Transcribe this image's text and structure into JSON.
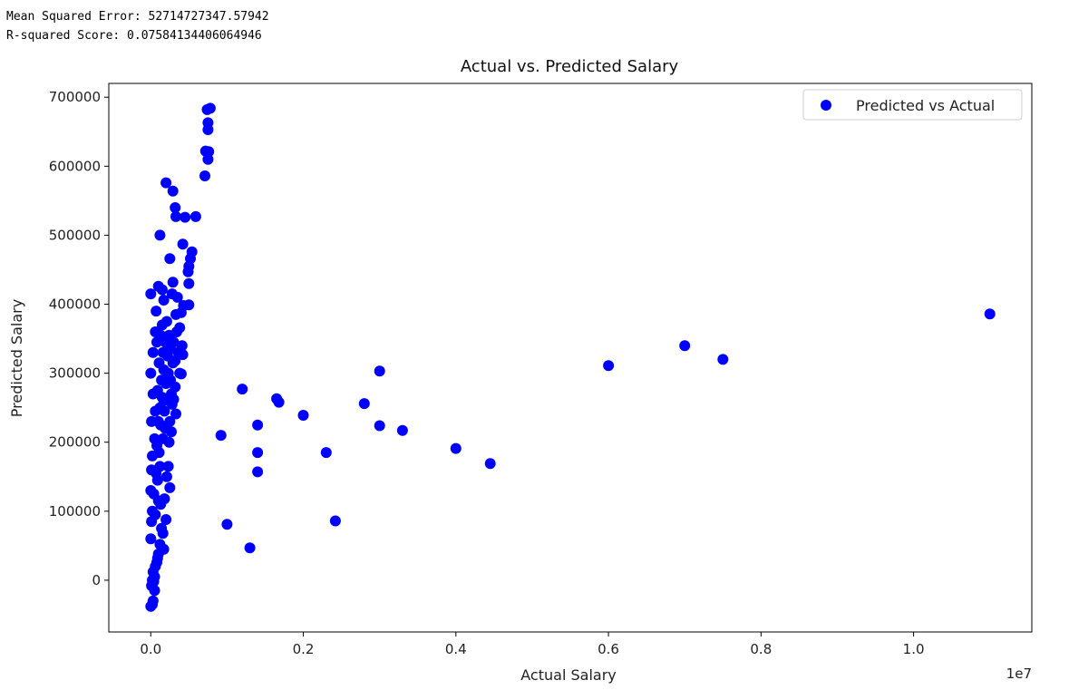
{
  "console": {
    "mse_line": "Mean Squared Error: 52714727347.57942",
    "r2_line": "R-squared Score: 0.07584134406064946"
  },
  "chart_data": {
    "type": "scatter",
    "title": "Actual vs. Predicted Salary",
    "xlabel": "Actual Salary",
    "ylabel": "Predicted Salary",
    "x_offset_label": "1e7",
    "xlim": [
      -550000,
      11550000
    ],
    "ylim": [
      -75000,
      720000
    ],
    "x_ticks": [
      0,
      2000000,
      4000000,
      6000000,
      8000000,
      10000000
    ],
    "x_tick_labels": [
      "0.0",
      "0.2",
      "0.4",
      "0.6",
      "0.8",
      "1.0"
    ],
    "y_ticks": [
      0,
      100000,
      200000,
      300000,
      400000,
      500000,
      600000,
      700000
    ],
    "y_tick_labels": [
      "0",
      "100000",
      "200000",
      "300000",
      "400000",
      "500000",
      "600000",
      "700000"
    ],
    "grid": false,
    "legend_position": "top-right",
    "series": [
      {
        "name": "Predicted vs Actual",
        "color": "#0000ff",
        "points": [
          [
            11000000,
            386000
          ],
          [
            7000000,
            340000
          ],
          [
            7500000,
            320000
          ],
          [
            6000000,
            311000
          ],
          [
            3000000,
            303000
          ],
          [
            2800000,
            256000
          ],
          [
            3000000,
            224000
          ],
          [
            3300000,
            217000
          ],
          [
            4000000,
            191000
          ],
          [
            4450000,
            169000
          ],
          [
            2300000,
            185000
          ],
          [
            2420000,
            86000
          ],
          [
            2000000,
            239000
          ],
          [
            1650000,
            263000
          ],
          [
            1680000,
            258000
          ],
          [
            1200000,
            277000
          ],
          [
            1400000,
            225000
          ],
          [
            1400000,
            185000
          ],
          [
            1400000,
            157000
          ],
          [
            920000,
            210000
          ],
          [
            1000000,
            81000
          ],
          [
            1300000,
            47000
          ],
          [
            780000,
            684000
          ],
          [
            740000,
            682000
          ],
          [
            750000,
            663000
          ],
          [
            750000,
            653000
          ],
          [
            720000,
            622000
          ],
          [
            760000,
            621000
          ],
          [
            750000,
            610000
          ],
          [
            710000,
            586000
          ],
          [
            200000,
            576000
          ],
          [
            290000,
            564000
          ],
          [
            320000,
            540000
          ],
          [
            330000,
            527000
          ],
          [
            450000,
            526000
          ],
          [
            590000,
            527000
          ],
          [
            120000,
            500000
          ],
          [
            420000,
            487000
          ],
          [
            540000,
            476000
          ],
          [
            520000,
            466000
          ],
          [
            250000,
            466000
          ],
          [
            500000,
            455000
          ],
          [
            490000,
            447000
          ],
          [
            500000,
            430000
          ],
          [
            290000,
            432000
          ],
          [
            100000,
            426000
          ],
          [
            150000,
            421000
          ],
          [
            0,
            415000
          ],
          [
            280000,
            415000
          ],
          [
            350000,
            410000
          ],
          [
            170000,
            406000
          ],
          [
            500000,
            399000
          ],
          [
            430000,
            398000
          ],
          [
            70000,
            390000
          ],
          [
            330000,
            385000
          ],
          [
            400000,
            388000
          ],
          [
            60000,
            360000
          ],
          [
            380000,
            366000
          ],
          [
            410000,
            340000
          ],
          [
            420000,
            327000
          ],
          [
            320000,
            318000
          ],
          [
            400000,
            299000
          ],
          [
            260000,
            290000
          ],
          [
            320000,
            280000
          ],
          [
            300000,
            262000
          ],
          [
            330000,
            241000
          ],
          [
            250000,
            230000
          ],
          [
            270000,
            215000
          ],
          [
            240000,
            200000
          ],
          [
            230000,
            165000
          ],
          [
            210000,
            150000
          ],
          [
            250000,
            134000
          ],
          [
            180000,
            118000
          ],
          [
            200000,
            88000
          ],
          [
            160000,
            68000
          ],
          [
            170000,
            45000
          ],
          [
            120000,
            52000
          ],
          [
            100000,
            38000
          ],
          [
            90000,
            32000
          ],
          [
            60000,
            20000
          ],
          [
            30000,
            12000
          ],
          [
            50000,
            5000
          ],
          [
            20000,
            0
          ],
          [
            10000,
            -8000
          ],
          [
            50000,
            -15000
          ],
          [
            30000,
            -30000
          ],
          [
            20000,
            -35000
          ],
          [
            0,
            -38000
          ],
          [
            40000,
            -2000
          ],
          [
            80000,
            26000
          ],
          [
            0,
            60000
          ],
          [
            10000,
            85000
          ],
          [
            0,
            130000
          ],
          [
            20000,
            180000
          ],
          [
            10000,
            230000
          ],
          [
            0,
            300000
          ],
          [
            30000,
            330000
          ],
          [
            80000,
            345000
          ],
          [
            60000,
            95000
          ],
          [
            90000,
            145000
          ],
          [
            110000,
            185000
          ],
          [
            130000,
            225000
          ],
          [
            150000,
            265000
          ],
          [
            170000,
            305000
          ],
          [
            190000,
            345000
          ],
          [
            210000,
            375000
          ],
          [
            140000,
            75000
          ],
          [
            100000,
            115000
          ],
          [
            120000,
            165000
          ],
          [
            160000,
            205000
          ],
          [
            180000,
            245000
          ],
          [
            200000,
            285000
          ],
          [
            220000,
            325000
          ],
          [
            240000,
            355000
          ],
          [
            70000,
            155000
          ],
          [
            90000,
            275000
          ],
          [
            50000,
            205000
          ],
          [
            110000,
            315000
          ],
          [
            130000,
            110000
          ],
          [
            260000,
            335000
          ],
          [
            280000,
            255000
          ],
          [
            300000,
            345000
          ],
          [
            60000,
            245000
          ],
          [
            80000,
            195000
          ],
          [
            40000,
            125000
          ],
          [
            30000,
            270000
          ],
          [
            10000,
            160000
          ],
          [
            20000,
            100000
          ],
          [
            130000,
            355000
          ],
          [
            150000,
            370000
          ],
          [
            230000,
            300000
          ],
          [
            270000,
            270000
          ],
          [
            290000,
            315000
          ],
          [
            340000,
            360000
          ],
          [
            360000,
            330000
          ],
          [
            380000,
            300000
          ],
          [
            190000,
            220000
          ],
          [
            170000,
            260000
          ],
          [
            100000,
            230000
          ],
          [
            140000,
            290000
          ],
          [
            120000,
            250000
          ],
          [
            160000,
            330000
          ]
        ]
      }
    ]
  }
}
